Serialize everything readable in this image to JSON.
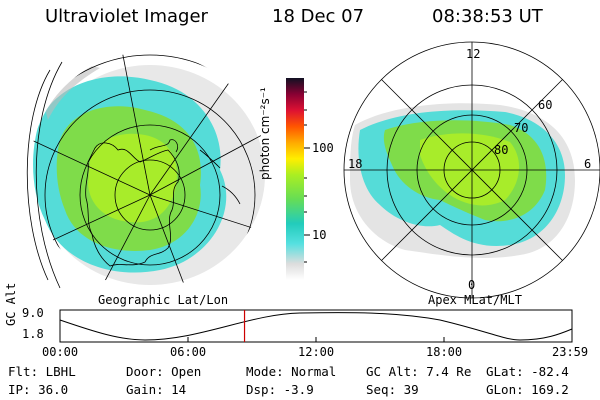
{
  "header": {
    "instrument": "Ultraviolet Imager",
    "date": "18 Dec 07",
    "time": "08:38:53 UT"
  },
  "left_panel": {
    "caption": "Geographic Lat/Lon"
  },
  "right_panel": {
    "caption": "Apex MLat/MLT",
    "mlt_labels": [
      "12",
      "18",
      "6",
      "0"
    ],
    "lat_labels": [
      "60",
      "70",
      "80"
    ]
  },
  "colorbar": {
    "unit_label": "photon cm⁻²s⁻¹",
    "tick_labels": [
      "100",
      "10"
    ],
    "colors": [
      "#ffffff",
      "#dddddd",
      "#55e0e0",
      "#22ccbb",
      "#66dd55",
      "#aaee22",
      "#ffee00",
      "#ffaa00",
      "#ff5500",
      "#dd1133",
      "#880033",
      "#330044",
      "#000000"
    ]
  },
  "altitude_plot": {
    "ylabel": "GC Alt",
    "y_ticks": [
      "9.0",
      "1.8"
    ],
    "x_ticks": [
      "00:00",
      "06:00",
      "12:00",
      "18:00",
      "23:59"
    ],
    "y_range": [
      1.8,
      9.0
    ],
    "current_time_hours": 8.65,
    "marker_color": "#cc0000"
  },
  "info": {
    "filter": "Flt: LBHL",
    "ip": "IP: 36.0",
    "door": "Door: Open",
    "gain": "Gain: 14",
    "mode": "Mode: Normal",
    "dsp": "Dsp:    -3.9",
    "gc_alt": "GC Alt: 7.4 Re",
    "seq": "Seq: 39",
    "glat": "GLat: -82.4",
    "glon": "GLon: 169.2"
  }
}
